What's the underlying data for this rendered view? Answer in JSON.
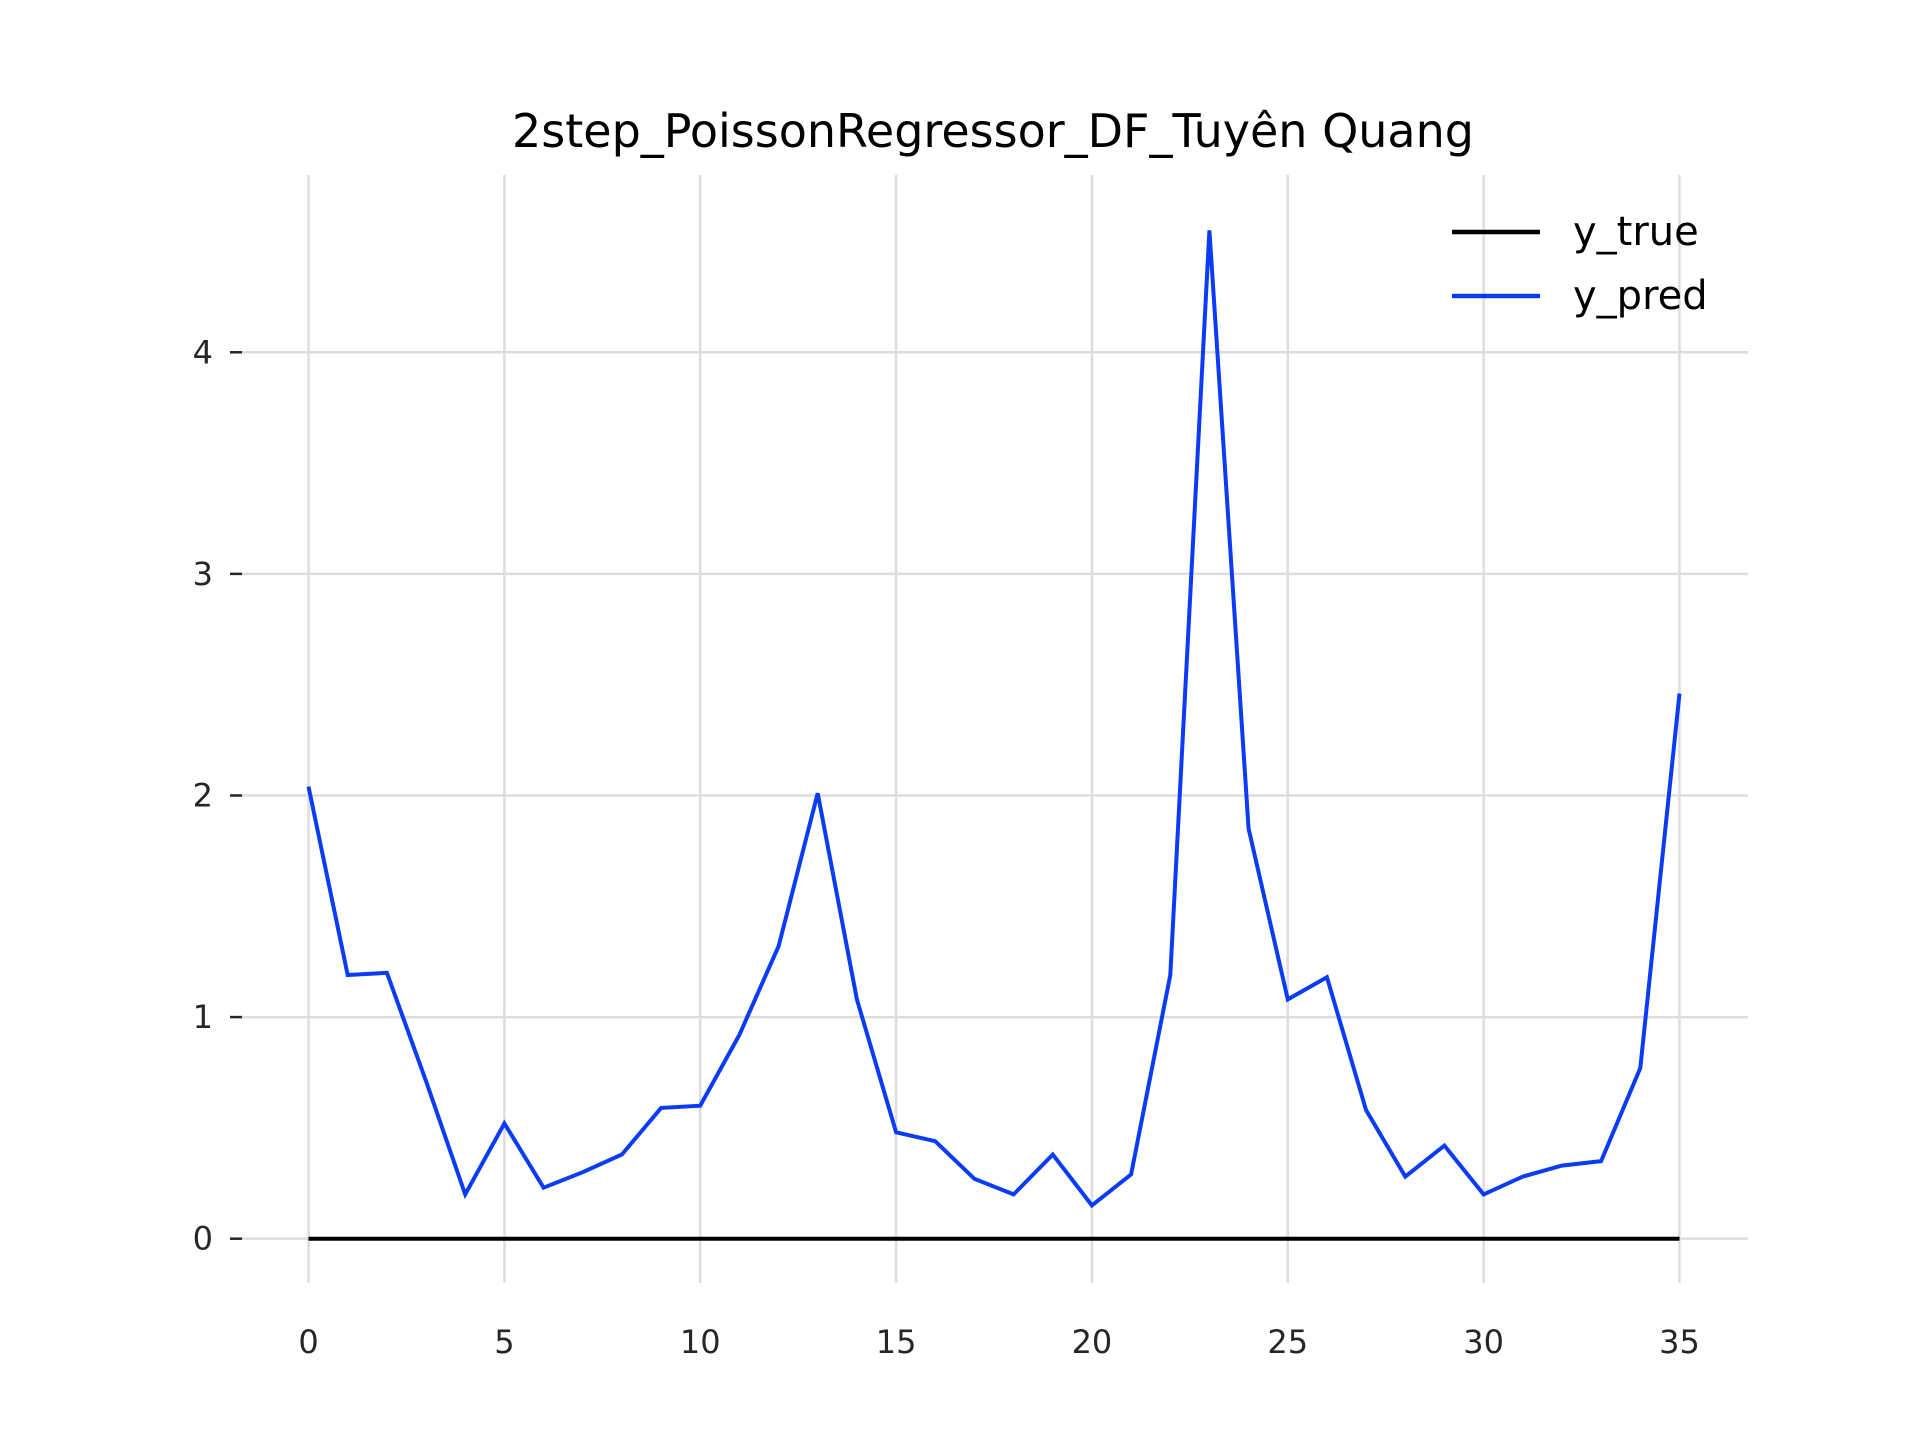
{
  "chart_data": {
    "type": "line",
    "title": "2step_PoissonRegressor_DF_Tuyên Quang",
    "xlabel": "",
    "ylabel": "",
    "xlim": [
      -1.75,
      36.75
    ],
    "ylim": [
      -0.2,
      4.8
    ],
    "x_ticks": [
      0,
      5,
      10,
      15,
      20,
      25,
      30,
      35
    ],
    "y_ticks": [
      0,
      1,
      2,
      3,
      4
    ],
    "grid": true,
    "legend_position": "top-right",
    "x": [
      0,
      1,
      2,
      3,
      4,
      5,
      6,
      7,
      8,
      9,
      10,
      11,
      12,
      13,
      14,
      15,
      16,
      17,
      18,
      19,
      20,
      21,
      22,
      23,
      24,
      25,
      26,
      27,
      28,
      29,
      30,
      31,
      32,
      33,
      34,
      35
    ],
    "series": [
      {
        "name": "y_true",
        "color": "#000000",
        "values": [
          0,
          0,
          0,
          0,
          0,
          0,
          0,
          0,
          0,
          0,
          0,
          0,
          0,
          0,
          0,
          0,
          0,
          0,
          0,
          0,
          0,
          0,
          0,
          0,
          0,
          0,
          0,
          0,
          0,
          0,
          0,
          0,
          0,
          0,
          0,
          0
        ]
      },
      {
        "name": "y_pred",
        "color": "#0a3cf5",
        "values": [
          2.04,
          1.19,
          1.2,
          0.71,
          0.2,
          0.52,
          0.23,
          0.3,
          0.38,
          0.59,
          0.6,
          0.92,
          1.32,
          2.01,
          1.08,
          0.48,
          0.44,
          0.27,
          0.2,
          0.38,
          0.15,
          0.29,
          1.19,
          4.55,
          1.85,
          1.08,
          1.18,
          0.58,
          0.28,
          0.42,
          0.2,
          0.28,
          0.33,
          0.35,
          0.77,
          2.46
        ]
      }
    ]
  }
}
